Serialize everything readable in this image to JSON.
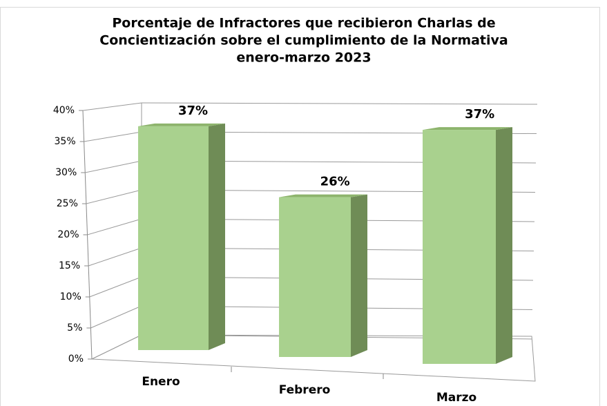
{
  "chart_data": {
    "type": "bar3d",
    "title": [
      "Porcentaje de Infractores que recibieron Charlas de",
      "Concientización sobre el cumplimiento de la Normativa",
      "enero-marzo 2023"
    ],
    "categories": [
      "Enero",
      "Febrero",
      "Marzo"
    ],
    "values": [
      37,
      26,
      37
    ],
    "value_labels": [
      "37%",
      "26%",
      "37%"
    ],
    "color": "#a9d18e",
    "ylim": [
      0,
      40
    ],
    "yticks": [
      {
        "value": 0,
        "label": "0%"
      },
      {
        "value": 5,
        "label": "5%"
      },
      {
        "value": 10,
        "label": "10%"
      },
      {
        "value": 15,
        "label": "15%"
      },
      {
        "value": 20,
        "label": "20%"
      },
      {
        "value": 25,
        "label": "25%"
      },
      {
        "value": 30,
        "label": "30%"
      },
      {
        "value": 35,
        "label": "35%"
      },
      {
        "value": 40,
        "label": "40%"
      }
    ],
    "grid": true
  }
}
